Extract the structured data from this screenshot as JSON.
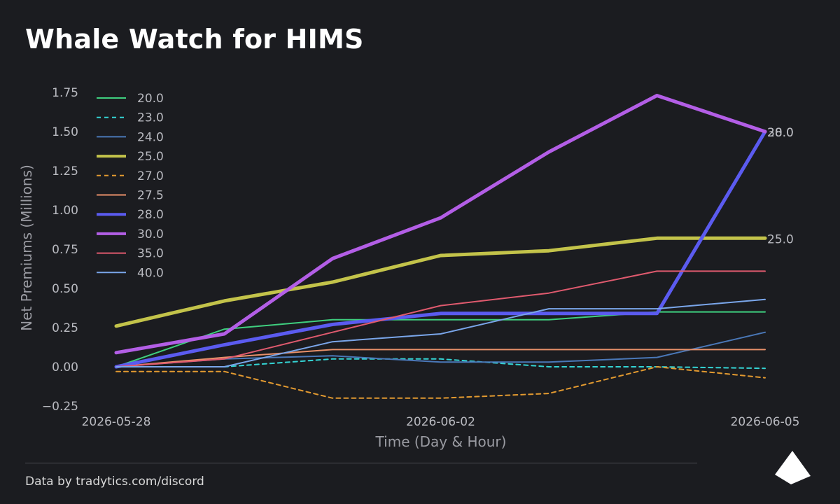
{
  "title": "Whale Watch for HIMS",
  "footer": "Data by tradytics.com/discord",
  "chart_data": {
    "type": "line",
    "title": "Whale Watch for HIMS",
    "xlabel": "Time (Day & Hour)",
    "ylabel": "Net Premiums (Millions)",
    "x_tick_labels": [
      "2026-05-28",
      "2026-06-02",
      "2026-06-05"
    ],
    "x_tick_positions": [
      0,
      3,
      6
    ],
    "ylim": [
      -0.25,
      1.78
    ],
    "y_ticks": [
      -0.25,
      0.0,
      0.25,
      0.5,
      0.75,
      1.0,
      1.25,
      1.5,
      1.75
    ],
    "y_tick_labels": [
      "−0.25",
      "0.00",
      "0.25",
      "0.50",
      "0.75",
      "1.00",
      "1.25",
      "1.50",
      "1.75"
    ],
    "grid": false,
    "legend_position": "top-left",
    "end_labels": [
      {
        "text": "30.0",
        "y": 1.5,
        "color": "#b9bac0"
      },
      {
        "text": "28.0",
        "y": 1.5,
        "color": "#b9bac0"
      },
      {
        "text": "25.0",
        "y": 0.82,
        "color": "#b9bac0"
      }
    ],
    "series": [
      {
        "name": "20.0",
        "color": "#3fcf7f",
        "width": 2,
        "dash": "",
        "values": [
          0.0,
          0.24,
          0.3,
          0.3,
          0.3,
          0.35,
          0.35
        ]
      },
      {
        "name": "23.0",
        "color": "#34d4d4",
        "width": 2,
        "dash": "6,5",
        "values": [
          0.0,
          0.0,
          0.05,
          0.05,
          0.0,
          0.0,
          -0.01
        ]
      },
      {
        "name": "24.0",
        "color": "#4a78b8",
        "width": 2,
        "dash": "",
        "values": [
          0.0,
          0.05,
          0.07,
          0.03,
          0.03,
          0.06,
          0.22
        ]
      },
      {
        "name": "25.0",
        "color": "#c3c34a",
        "width": 5,
        "dash": "",
        "values": [
          0.26,
          0.42,
          0.54,
          0.71,
          0.74,
          0.82,
          0.82
        ]
      },
      {
        "name": "27.0",
        "color": "#e39a30",
        "width": 2,
        "dash": "6,5",
        "values": [
          -0.03,
          -0.03,
          -0.2,
          -0.2,
          -0.17,
          0.0,
          -0.07
        ]
      },
      {
        "name": "27.5",
        "color": "#e8906a",
        "width": 2,
        "dash": "",
        "values": [
          0.0,
          0.06,
          0.11,
          0.11,
          0.11,
          0.11,
          0.11
        ]
      },
      {
        "name": "28.0",
        "color": "#5b5bf0",
        "width": 5,
        "dash": "",
        "values": [
          0.0,
          0.14,
          0.27,
          0.34,
          0.34,
          0.34,
          1.5
        ]
      },
      {
        "name": "30.0",
        "color": "#b35ee6",
        "width": 5,
        "dash": "",
        "values": [
          0.09,
          0.21,
          0.69,
          0.95,
          1.37,
          1.73,
          1.5
        ]
      },
      {
        "name": "35.0",
        "color": "#e05a6e",
        "width": 2,
        "dash": "",
        "values": [
          0.0,
          0.05,
          0.22,
          0.39,
          0.47,
          0.61,
          0.61
        ]
      },
      {
        "name": "40.0",
        "color": "#7aa6ea",
        "width": 2,
        "dash": "",
        "values": [
          0.0,
          0.0,
          0.16,
          0.21,
          0.37,
          0.37,
          0.43
        ]
      }
    ]
  }
}
